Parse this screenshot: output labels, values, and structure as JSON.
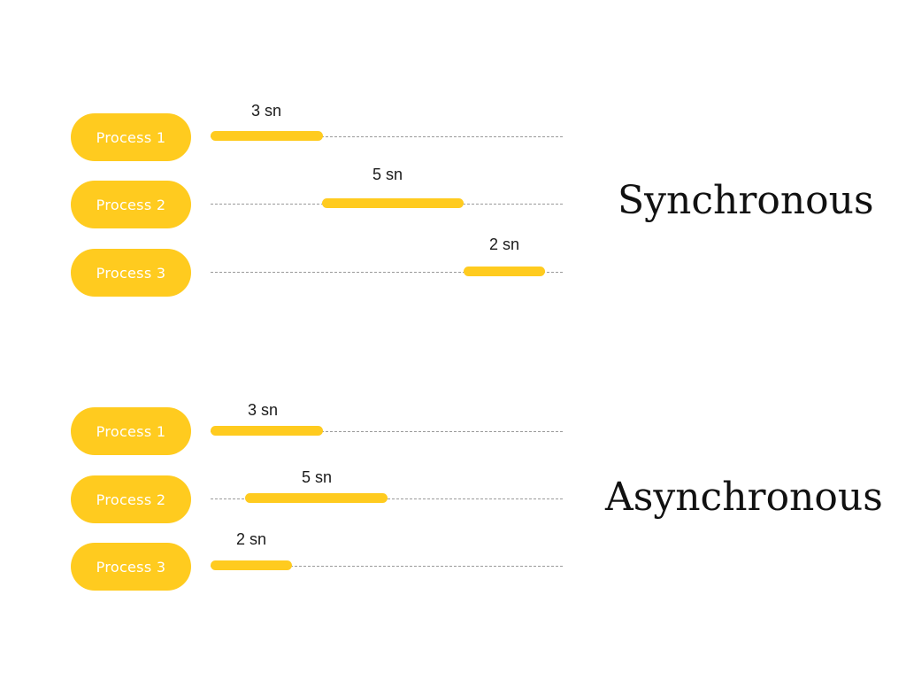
{
  "sections": [
    {
      "title": "Synchronous",
      "rows": [
        {
          "label": "Process 1",
          "duration": "3 sn"
        },
        {
          "label": "Process 2",
          "duration": "5 sn"
        },
        {
          "label": "Process 3",
          "duration": "2 sn"
        }
      ]
    },
    {
      "title": "Asynchronous",
      "rows": [
        {
          "label": "Process 1",
          "duration": "3 sn"
        },
        {
          "label": "Process 2",
          "duration": "5 sn"
        },
        {
          "label": "Process 3",
          "duration": "2 sn"
        }
      ]
    }
  ],
  "colors": {
    "accent": "#FFCB1F",
    "track": "#9a9a9a",
    "text": "#111111"
  }
}
